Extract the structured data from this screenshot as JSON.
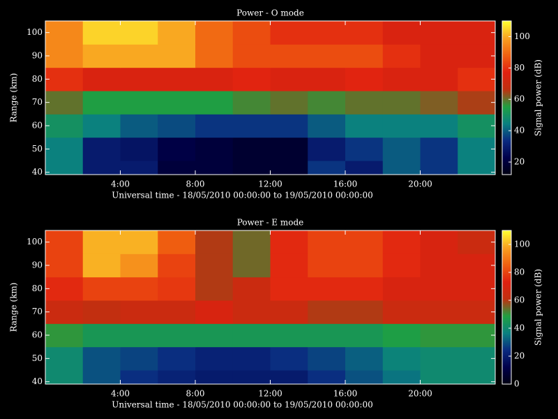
{
  "chart_data": [
    {
      "type": "heatmap",
      "title": "Power - O mode",
      "x_label": "Universal time - 18/05/2010 00:00:00 to 19/05/2010 00:00:00",
      "y_label": "Range (km)",
      "colorbar_label": "Signal power (dB)",
      "x": [
        1,
        3,
        5,
        7,
        9,
        11,
        13,
        15,
        17,
        19,
        21,
        23
      ],
      "y": [
        40,
        50,
        60,
        70,
        80,
        90,
        100
      ],
      "values": [
        [
          45,
          30,
          30,
          20,
          20,
          18,
          18,
          35,
          30,
          40,
          35,
          45
        ],
        [
          45,
          30,
          28,
          22,
          20,
          18,
          18,
          30,
          35,
          40,
          35,
          45
        ],
        [
          50,
          45,
          40,
          38,
          35,
          35,
          35,
          40,
          45,
          45,
          45,
          50
        ],
        [
          60,
          55,
          55,
          55,
          55,
          58,
          60,
          58,
          60,
          60,
          62,
          65
        ],
        [
          80,
          75,
          75,
          75,
          75,
          78,
          75,
          75,
          78,
          75,
          75,
          80
        ],
        [
          95,
          100,
          100,
          100,
          90,
          85,
          85,
          85,
          85,
          80,
          75,
          75
        ],
        [
          95,
          105,
          105,
          100,
          90,
          85,
          80,
          80,
          80,
          75,
          75,
          75
        ]
      ],
      "xlim": [
        0,
        24
      ],
      "ylim": [
        39,
        105
      ],
      "xticks": [
        {
          "value": 4,
          "label": "4:00"
        },
        {
          "value": 8,
          "label": "8:00"
        },
        {
          "value": 12,
          "label": "12:00"
        },
        {
          "value": 16,
          "label": "16:00"
        },
        {
          "value": 20,
          "label": "20:00"
        }
      ],
      "yticks": [
        40,
        50,
        60,
        70,
        80,
        90,
        100
      ],
      "clim": [
        12,
        110
      ],
      "cticks": [
        20,
        40,
        60,
        80,
        100
      ],
      "colormap": [
        "#000010",
        "#00004a",
        "#0a2a80",
        "#0a8080",
        "#20a040",
        "#c03010",
        "#e02010",
        "#f06010",
        "#f8a020",
        "#ffff30"
      ]
    },
    {
      "type": "heatmap",
      "title": "Power - E mode",
      "x_label": "Universal time - 18/05/2010 00:00:00 to 19/05/2010 00:00:00",
      "y_label": "Range (km)",
      "colorbar_label": "Signal power (dB)",
      "x": [
        1,
        3,
        5,
        7,
        9,
        11,
        13,
        15,
        17,
        19,
        21,
        23
      ],
      "y": [
        40,
        50,
        60,
        70,
        80,
        90,
        100
      ],
      "values": [
        [
          40,
          30,
          25,
          22,
          20,
          20,
          20,
          25,
          30,
          35,
          40,
          40
        ],
        [
          40,
          30,
          28,
          25,
          22,
          22,
          25,
          28,
          32,
          38,
          40,
          40
        ],
        [
          50,
          45,
          45,
          45,
          45,
          45,
          45,
          45,
          45,
          48,
          50,
          50
        ],
        [
          65,
          62,
          65,
          65,
          70,
          65,
          65,
          60,
          60,
          65,
          65,
          65
        ],
        [
          75,
          80,
          80,
          78,
          60,
          65,
          75,
          75,
          75,
          70,
          70,
          70
        ],
        [
          80,
          100,
          95,
          80,
          60,
          55,
          75,
          80,
          80,
          75,
          70,
          70
        ],
        [
          80,
          100,
          100,
          85,
          60,
          55,
          75,
          80,
          80,
          75,
          70,
          65
        ]
      ],
      "xlim": [
        0,
        24
      ],
      "ylim": [
        39,
        105
      ],
      "xticks": [
        {
          "value": 4,
          "label": "4:00"
        },
        {
          "value": 8,
          "label": "8:00"
        },
        {
          "value": 12,
          "label": "12:00"
        },
        {
          "value": 16,
          "label": "16:00"
        },
        {
          "value": 20,
          "label": "20:00"
        }
      ],
      "yticks": [
        40,
        50,
        60,
        70,
        80,
        90,
        100
      ],
      "clim": [
        0,
        110
      ],
      "cticks": [
        0,
        20,
        40,
        60,
        80,
        100
      ],
      "colormap": [
        "#000010",
        "#00004a",
        "#0a2a80",
        "#0a8080",
        "#20a040",
        "#c03010",
        "#e02010",
        "#f06010",
        "#f8a020",
        "#ffff30"
      ]
    }
  ]
}
